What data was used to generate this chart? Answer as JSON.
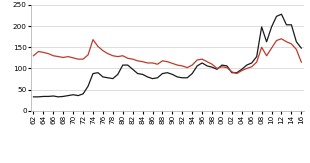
{
  "years": [
    1962,
    1963,
    1964,
    1965,
    1966,
    1967,
    1968,
    1969,
    1970,
    1971,
    1972,
    1973,
    1974,
    1975,
    1976,
    1977,
    1978,
    1979,
    1980,
    1981,
    1982,
    1983,
    1984,
    1985,
    1986,
    1987,
    1988,
    1989,
    1990,
    1991,
    1992,
    1993,
    1994,
    1995,
    1996,
    1997,
    1998,
    1999,
    2000,
    2001,
    2002,
    2003,
    2004,
    2005,
    2006,
    2007,
    2008,
    2009,
    2010,
    2011,
    2012,
    2013,
    2014,
    2015,
    2016
  ],
  "nominal": [
    33,
    33,
    34,
    34,
    35,
    33,
    34,
    36,
    38,
    36,
    40,
    58,
    88,
    90,
    80,
    78,
    76,
    86,
    108,
    108,
    98,
    88,
    86,
    80,
    76,
    78,
    88,
    90,
    86,
    80,
    78,
    78,
    88,
    106,
    113,
    106,
    103,
    98,
    108,
    106,
    90,
    90,
    98,
    108,
    113,
    128,
    198,
    163,
    198,
    223,
    228,
    203,
    203,
    163,
    148
  ],
  "deflated": [
    130,
    140,
    138,
    135,
    130,
    128,
    126,
    128,
    125,
    122,
    122,
    132,
    168,
    152,
    142,
    135,
    130,
    128,
    130,
    124,
    122,
    118,
    116,
    113,
    113,
    110,
    118,
    116,
    112,
    108,
    106,
    102,
    108,
    120,
    122,
    116,
    110,
    100,
    104,
    102,
    92,
    88,
    95,
    100,
    104,
    115,
    150,
    130,
    148,
    166,
    170,
    163,
    158,
    145,
    115
  ],
  "nominal_color": "#1a1a1a",
  "deflated_color": "#c0392b",
  "bg_color": "#ffffff",
  "plot_bg_color": "#ffffff",
  "grid_color": "#d8d8d8",
  "ylim": [
    0,
    250
  ],
  "yticks": [
    0,
    50,
    100,
    150,
    200,
    250
  ],
  "tick_fontsize": 5.2,
  "legend_fontsize": 5.5
}
